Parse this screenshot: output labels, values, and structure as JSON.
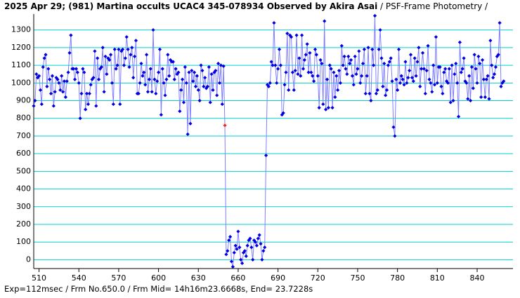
{
  "title": {
    "main": "2025 Apr 29; (981) Martina occults UCAC4 345-078934 Observed by Akira Asai",
    "sub": " / PSF-Frame Photometry /"
  },
  "footer": {
    "text": "Exp=112msec / Frm No.650.0 / Frm Mid= 14h16m23.6668s, End= 23.7228s"
  },
  "colors": {
    "grid": "#00d0d0",
    "line": "#8080ff",
    "point": "#0000e0",
    "highlight": "#ff2020",
    "axis": "#000000"
  },
  "chart_data": {
    "type": "scatter",
    "title": "2025 Apr 29; (981) Martina occults UCAC4 345-078934 Observed by Akira Asai",
    "xlim": [
      506,
      867
    ],
    "ylim": [
      -50,
      1390
    ],
    "grid": "horizontal",
    "x_ticks": [
      "510",
      "540",
      "570",
      "600",
      "630",
      "660",
      "690",
      "720",
      "750",
      "780",
      "810",
      "840"
    ],
    "y_ticks": [
      "0",
      "100",
      "200",
      "300",
      "400",
      "500",
      "600",
      "700",
      "800",
      "900",
      "1000",
      "1100",
      "1200",
      "1300"
    ],
    "highlight": {
      "x": 650,
      "y": 760
    },
    "series": [
      {
        "x_start": 506,
        "values": [
          870,
          900,
          1050,
          1030,
          1040,
          960,
          880,
          1090,
          1140,
          1160,
          980,
          1080,
          1020,
          940,
          1040,
          870,
          950,
          1030,
          1020,
          1000,
          960,
          1040,
          950,
          1010,
          920,
          1010,
          1060,
          1170,
          1270,
          1080,
          1080,
          1020,
          1080,
          1060,
          1000,
          800,
          940,
          1080,
          1060,
          850,
          940,
          880,
          940,
          990,
          1020,
          1030,
          1180,
          870,
          1140,
          1020,
          1080,
          1090,
          1200,
          950,
          1150,
          1050,
          1140,
          1130,
          1160,
          1000,
          880,
          1190,
          1080,
          1100,
          1190,
          880,
          1180,
          1190,
          1100,
          1140,
          1260,
          1190,
          1090,
          1160,
          1200,
          1030,
          1150,
          1240,
          940,
          940,
          1000,
          1110,
          1040,
          1060,
          990,
          1160,
          950,
          1020,
          1080,
          950,
          1300,
          1020,
          940,
          1010,
          1060,
          1190,
          820,
          1080,
          1000,
          930,
          1020,
          1160,
          1040,
          1130,
          1120,
          1120,
          1020,
          1080,
          1050,
          1060,
          840,
          960,
          1020,
          890,
          1090,
          1000,
          710,
          1060,
          770,
          1070,
          1010,
          1060,
          980,
          1040,
          960,
          900,
          1100,
          1070,
          980,
          1030,
          970,
          980,
          1090,
          890,
          1050,
          960,
          1060,
          1070,
          930,
          1110,
          1000,
          1100,
          880,
          1095,
          760,
          30,
          50,
          110,
          130,
          -10,
          -40,
          40,
          80,
          60,
          160,
          70,
          0,
          -20,
          40,
          50,
          20,
          80,
          110,
          120,
          70,
          0,
          110,
          100,
          80,
          120,
          140,
          90,
          0,
          50,
          70,
          590,
          990,
          980,
          1000,
          1120,
          1100,
          1340,
          1100,
          1000,
          1080,
          1190,
          1100,
          820,
          830,
          990,
          1060,
          1280,
          960,
          1270,
          1260,
          1060,
          960,
          1070,
          1270,
          1050,
          1140,
          1040,
          1270,
          1080,
          1130,
          1160,
          1220,
          1060,
          1170,
          1060,
          1040,
          1010,
          1190,
          1160,
          1040,
          860,
          1130,
          1110,
          880,
          1350,
          850,
          1020,
          860,
          1100,
          1080,
          860,
          1060,
          920,
          1040,
          960,
          1070,
          1000,
          1210,
          1100,
          1150,
          1080,
          1050,
          1150,
          1110,
          1130,
          1040,
          990,
          1150,
          1050,
          1080,
          1180,
          1000,
          1040,
          1110,
          1190,
          940,
          1040,
          1200,
          940,
          900,
          1190,
          1100,
          1380,
          940,
          960,
          1190,
          1300,
          1140,
          980,
          1110,
          930,
          960,
          1100,
          1120,
          1140,
          1010,
          750,
          700,
          1020,
          960,
          1190,
          1000,
          1040,
          1020,
          990,
          1120,
          1000,
          1030,
          1070,
          1160,
          1030,
          1010,
          1140,
          1040,
          1120,
          1200,
          980,
          1080,
          1170,
          1080,
          940,
          1070,
          1210,
          1020,
          1000,
          950,
          1100,
          990,
          1260,
          1000,
          1090,
          1090,
          980,
          940,
          1060,
          1080,
          1010,
          1000,
          1080,
          890,
          1100,
          900,
          1050,
          1110,
          1000,
          810,
          1230,
          1060,
          1080,
          1140,
          1010,
          1000,
          910,
          1040,
          900,
          1090,
          970,
          1160,
          1080,
          1000,
          1150,
          1110,
          920,
          1130,
          1020,
          920,
          1020,
          1040,
          910,
          1240,
          1100,
          1030,
          1050,
          1090,
          1150,
          1160,
          1340,
          980,
          1000,
          1010
        ]
      }
    ]
  }
}
